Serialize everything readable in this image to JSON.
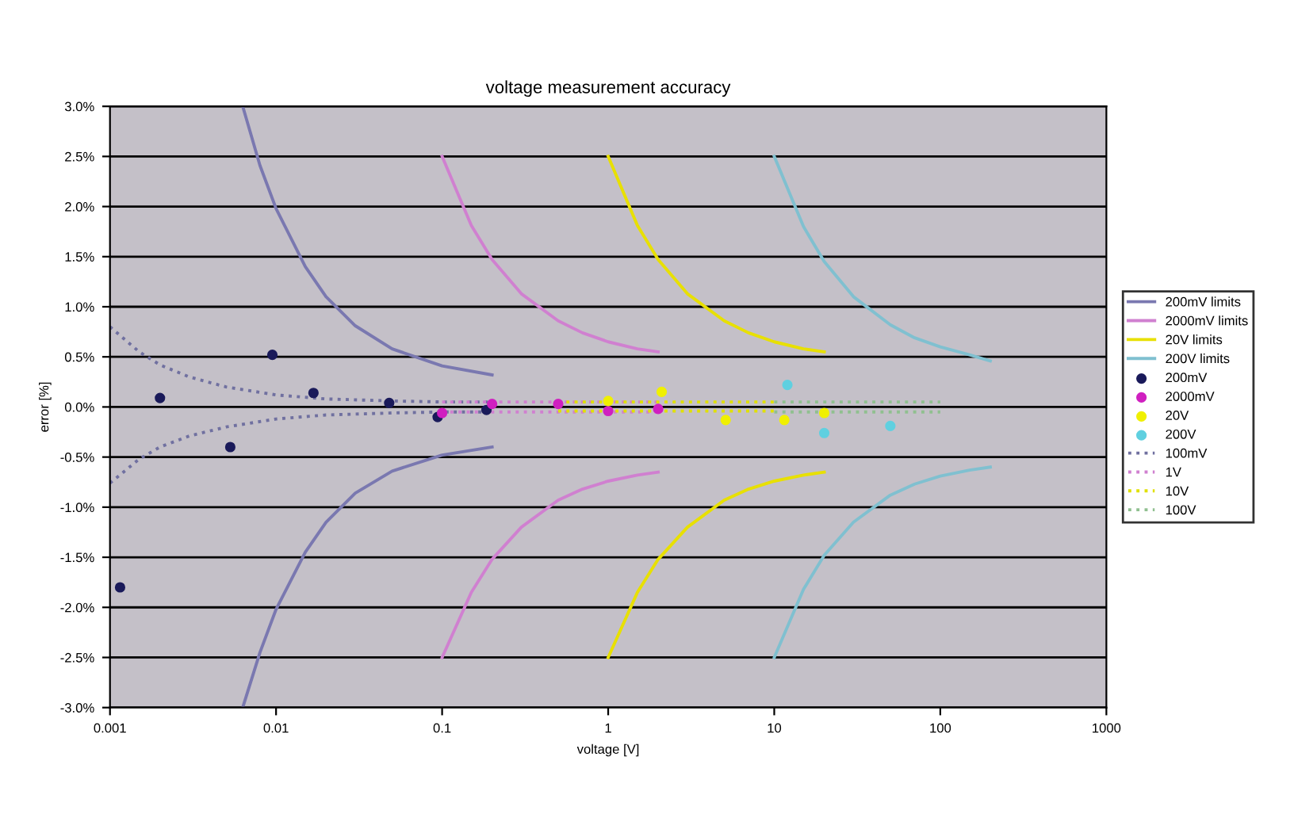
{
  "chart_data": {
    "type": "line",
    "title": "voltage measurement accuracy",
    "xlabel": "voltage [V]",
    "ylabel": "error [%]",
    "log": "x",
    "grid": "y",
    "legend": "right",
    "xlim": [
      0.001,
      1000
    ],
    "xticks": [
      0.001,
      0.01,
      0.1,
      1,
      10,
      100,
      1000
    ],
    "ylim": [
      -3.0,
      3.0
    ],
    "yticks": [
      {
        "value": 3.0,
        "label": "3.0%"
      },
      {
        "value": 2.5,
        "label": "2.5%"
      },
      {
        "value": 2.0,
        "label": "2.0%"
      },
      {
        "value": 1.5,
        "label": "1.5%"
      },
      {
        "value": 1.0,
        "label": "1.0%"
      },
      {
        "value": 0.5,
        "label": "0.5%"
      },
      {
        "value": 0.0,
        "label": "0.0%"
      },
      {
        "value": -0.5,
        "label": "-0.5%"
      },
      {
        "value": -1.0,
        "label": "-1.0%"
      },
      {
        "value": -1.5,
        "label": "-1.5%"
      },
      {
        "value": -2.0,
        "label": "-2.0%"
      },
      {
        "value": -2.5,
        "label": "-2.5%"
      },
      {
        "value": -3.0,
        "label": "-3.0%"
      }
    ],
    "series": [
      {
        "name": "200mV limits",
        "color": "#7a78b0",
        "line_style": "solid",
        "marker": "none",
        "x": [
          0.0063,
          0.008,
          0.01,
          0.015,
          0.02,
          0.03,
          0.05,
          0.1,
          0.2,
          null,
          0.0063,
          0.008,
          0.01,
          0.015,
          0.02,
          0.03,
          0.05,
          0.1,
          0.2
        ],
        "values": [
          3.0,
          2.41,
          1.98,
          1.4,
          1.1,
          0.81,
          0.58,
          0.41,
          0.32,
          null,
          -3.0,
          -2.45,
          -2.02,
          -1.45,
          -1.15,
          -0.86,
          -0.64,
          -0.48,
          -0.4
        ]
      },
      {
        "name": "2000mV limits",
        "color": "#d080d0",
        "line_style": "solid",
        "marker": "none",
        "x": [
          0.1,
          0.15,
          0.2,
          0.3,
          0.5,
          0.7,
          1,
          1.5,
          2,
          null,
          0.1,
          0.15,
          0.2,
          0.3,
          0.5,
          0.7,
          1,
          1.5,
          2
        ],
        "values": [
          2.5,
          1.81,
          1.47,
          1.13,
          0.86,
          0.74,
          0.65,
          0.58,
          0.55,
          null,
          -2.5,
          -1.85,
          -1.52,
          -1.2,
          -0.93,
          -0.82,
          -0.74,
          -0.68,
          -0.65
        ]
      },
      {
        "name": "20V limits",
        "color": "#e8e000",
        "line_style": "solid",
        "marker": "none",
        "x": [
          1,
          1.5,
          2,
          3,
          5,
          7,
          10,
          15,
          20,
          null,
          1,
          1.5,
          2,
          3,
          5,
          7,
          10,
          15,
          20
        ],
        "values": [
          2.5,
          1.81,
          1.47,
          1.13,
          0.86,
          0.74,
          0.65,
          0.58,
          0.55,
          null,
          -2.5,
          -1.85,
          -1.52,
          -1.2,
          -0.93,
          -0.82,
          -0.74,
          -0.68,
          -0.65
        ]
      },
      {
        "name": "200V limits",
        "color": "#80c0d0",
        "line_style": "solid",
        "marker": "none",
        "x": [
          10,
          15,
          20,
          30,
          50,
          70,
          100,
          150,
          200,
          null,
          10,
          15,
          20,
          30,
          50,
          70,
          100,
          150,
          200
        ],
        "values": [
          2.5,
          1.8,
          1.45,
          1.1,
          0.82,
          0.69,
          0.6,
          0.52,
          0.46,
          null,
          -2.5,
          -1.82,
          -1.48,
          -1.15,
          -0.88,
          -0.77,
          -0.69,
          -0.63,
          -0.6
        ]
      },
      {
        "name": "200mV",
        "type": "scatter",
        "color": "#1a1a5a",
        "marker": "circle",
        "x": [
          0.00115,
          0.002,
          0.0053,
          0.0095,
          0.0168,
          0.048,
          0.094,
          0.185
        ],
        "values": [
          -1.8,
          0.09,
          -0.4,
          0.52,
          0.14,
          0.04,
          -0.1,
          -0.03
        ]
      },
      {
        "name": "2000mV",
        "type": "scatter",
        "color": "#d020c0",
        "marker": "circle",
        "x": [
          0.1,
          0.2,
          0.5,
          1,
          2
        ],
        "values": [
          -0.06,
          0.03,
          0.03,
          -0.04,
          -0.02
        ]
      },
      {
        "name": "20V",
        "type": "scatter",
        "color": "#f0f000",
        "marker": "circle",
        "x": [
          1,
          2.1,
          5.1,
          11.5,
          20
        ],
        "values": [
          0.06,
          0.15,
          -0.13,
          -0.13,
          -0.06
        ]
      },
      {
        "name": "200V",
        "type": "scatter",
        "color": "#60d0e0",
        "marker": "circle",
        "x": [
          12,
          20,
          50
        ],
        "values": [
          0.22,
          -0.26,
          -0.19
        ]
      },
      {
        "name": "100mV",
        "color": "#7070a0",
        "line_style": "dotted",
        "marker": "none",
        "x": [
          0.001,
          0.0015,
          0.002,
          0.003,
          0.005,
          0.01,
          0.02,
          0.05,
          0.1,
          0.2,
          null,
          0.001,
          0.0015,
          0.002,
          0.003,
          0.005,
          0.01,
          0.02,
          0.05,
          0.1,
          0.2
        ],
        "values": [
          0.8,
          0.55,
          0.42,
          0.3,
          0.2,
          0.12,
          0.08,
          0.06,
          0.05,
          0.05,
          null,
          -0.76,
          -0.52,
          -0.4,
          -0.29,
          -0.2,
          -0.12,
          -0.08,
          -0.06,
          -0.05,
          -0.05
        ]
      },
      {
        "name": "1V",
        "color": "#d080d0",
        "line_style": "dotted",
        "marker": "none",
        "x": [
          0.1,
          0.5,
          1,
          2,
          null,
          0.1,
          0.5,
          1,
          2
        ],
        "values": [
          0.05,
          0.05,
          0.05,
          0.05,
          null,
          -0.05,
          -0.05,
          -0.05,
          -0.05
        ]
      },
      {
        "name": "10V",
        "color": "#e0e000",
        "line_style": "dotted",
        "marker": "none",
        "x": [
          0.5,
          1,
          2,
          5,
          10,
          null,
          0.5,
          1,
          2,
          5,
          10
        ],
        "values": [
          0.05,
          0.05,
          0.05,
          0.05,
          0.05,
          null,
          -0.04,
          -0.04,
          -0.04,
          -0.04,
          -0.04
        ]
      },
      {
        "name": "100V",
        "color": "#90c090",
        "line_style": "dotted",
        "marker": "none",
        "x": [
          10,
          20,
          50,
          100,
          null,
          10,
          20,
          50,
          100
        ],
        "values": [
          0.05,
          0.05,
          0.05,
          0.05,
          null,
          -0.05,
          -0.05,
          -0.05,
          -0.05
        ]
      }
    ]
  }
}
